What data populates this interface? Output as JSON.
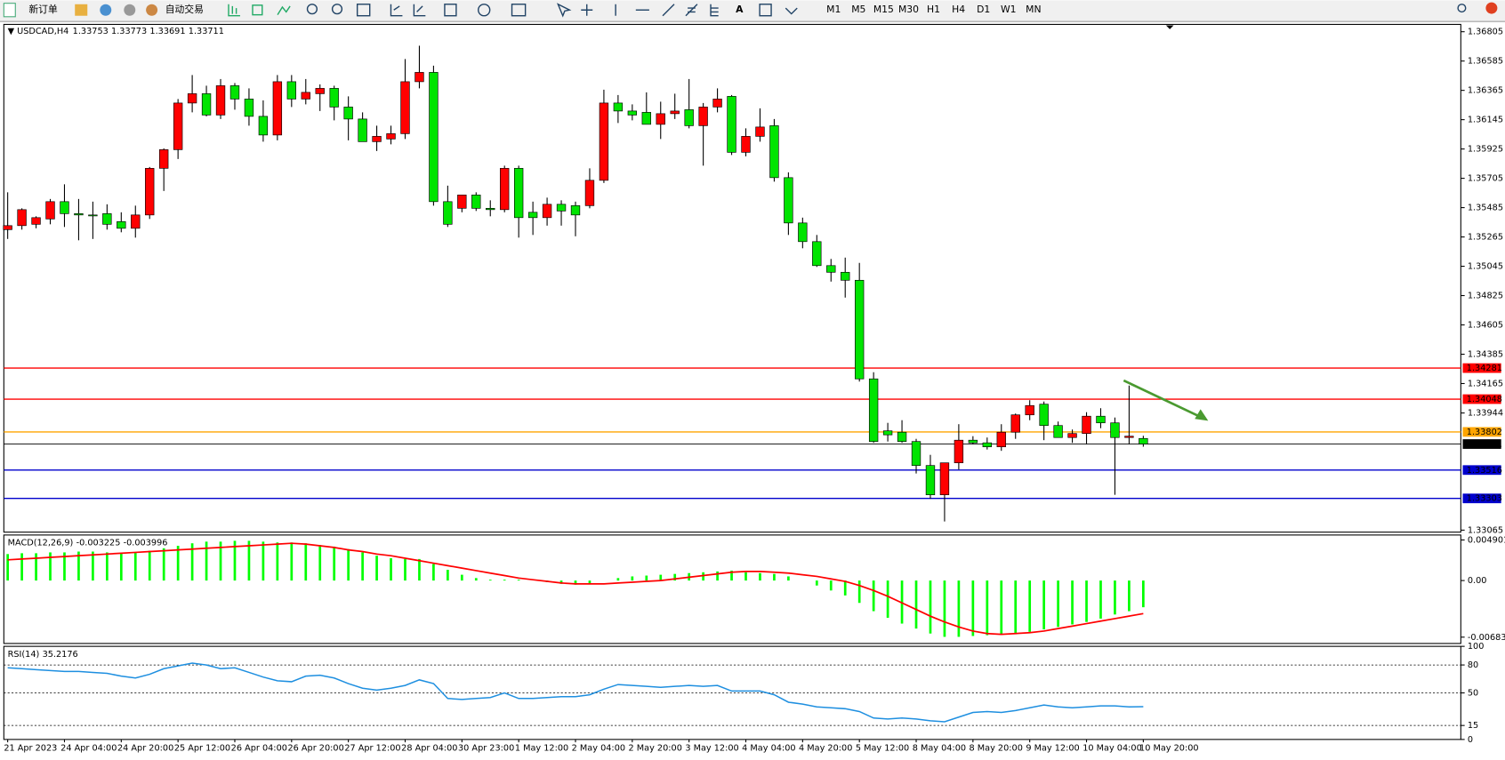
{
  "toolbar": {
    "new_order": "新订单",
    "auto_trading": "自动交易",
    "timeframes": [
      "M1",
      "M5",
      "M15",
      "M30",
      "H1",
      "H4",
      "D1",
      "W1",
      "MN"
    ]
  },
  "chart_data": [
    {
      "type": "candlestick",
      "title": "USDCAD,H4",
      "categories": [
        "21 Apr 2023",
        null,
        null,
        null,
        "24 Apr 04:00",
        null,
        null,
        null,
        "24 Apr 20:00",
        null,
        null,
        null,
        "25 Apr 12:00",
        null,
        null,
        null,
        "26 Apr 04:00",
        null,
        null,
        null,
        "26 Apr 20:00",
        null,
        null,
        null,
        "27 Apr 12:00",
        null,
        null,
        null,
        "28 Apr 04:00",
        null,
        null,
        null,
        "30 Apr 23:00",
        null,
        null,
        null,
        "1 May 12:00",
        null,
        null,
        null,
        "2 May 04:00",
        null,
        null,
        null,
        "2 May 20:00",
        null,
        null,
        null,
        "3 May 12:00",
        null,
        null,
        null,
        "4 May 04:00",
        null,
        null,
        null,
        "4 May 20:00",
        null,
        null,
        null,
        "5 May 12:00",
        null,
        null,
        null,
        "8 May 04:00",
        null,
        null,
        null,
        "8 May 20:00",
        null,
        null,
        null,
        "9 May 12:00",
        null,
        null,
        null,
        "10 May 04:00",
        null,
        null,
        null,
        "10 May 20:00"
      ],
      "open": [
        1.3532,
        1.3535,
        1.3536,
        1.354,
        1.3553,
        1.3544,
        1.3543,
        1.3544,
        1.3538,
        1.3533,
        1.3543,
        1.3578,
        1.3592,
        1.3627,
        1.3634,
        1.3618,
        1.364,
        1.363,
        1.3617,
        1.3603,
        1.3643,
        1.363,
        1.3634,
        1.3638,
        1.3624,
        1.3615,
        1.3598,
        1.36,
        1.3604,
        1.3643,
        1.365,
        1.3553,
        1.3548,
        1.3558,
        1.3548,
        1.3547,
        1.3578,
        1.3545,
        1.3541,
        1.3551,
        1.355,
        1.355,
        1.3569,
        1.3627,
        1.3621,
        1.362,
        1.3611,
        1.3619,
        1.3622,
        1.361,
        1.3624,
        1.3632,
        1.359,
        1.3602,
        1.361,
        1.3571,
        1.3537,
        1.3523,
        1.3505,
        1.35,
        1.3494,
        1.342,
        1.3381,
        1.338,
        1.3373,
        1.3355,
        1.3333,
        1.3357,
        1.3374,
        1.3372,
        1.3369,
        1.338,
        1.3393,
        1.3401,
        1.3385,
        1.3376,
        1.3379,
        1.3392,
        1.3387,
        1.3376,
        1.33753
      ],
      "high": [
        1.356,
        1.3548,
        1.3542,
        1.3555,
        1.3566,
        1.3555,
        1.3553,
        1.3551,
        1.3545,
        1.355,
        1.3579,
        1.3593,
        1.363,
        1.3648,
        1.364,
        1.3645,
        1.3642,
        1.3638,
        1.3629,
        1.3648,
        1.3648,
        1.3645,
        1.3641,
        1.364,
        1.3632,
        1.362,
        1.361,
        1.361,
        1.366,
        1.367,
        1.3655,
        1.3565,
        1.3558,
        1.356,
        1.3554,
        1.358,
        1.358,
        1.3553,
        1.3556,
        1.3554,
        1.3553,
        1.3578,
        1.3637,
        1.3633,
        1.3626,
        1.3635,
        1.3628,
        1.3634,
        1.3645,
        1.3627,
        1.3638,
        1.3633,
        1.3608,
        1.3623,
        1.3615,
        1.3575,
        1.3541,
        1.3528,
        1.351,
        1.3511,
        1.3507,
        1.3425,
        1.3387,
        1.3389,
        1.3375,
        1.3363,
        1.3356,
        1.3386,
        1.3377,
        1.3376,
        1.3386,
        1.3394,
        1.3404,
        1.3403,
        1.3388,
        1.3382,
        1.3395,
        1.3398,
        1.3391,
        1.3415,
        1.33773
      ],
      "low": [
        1.3525,
        1.3532,
        1.3533,
        1.3536,
        1.3534,
        1.3524,
        1.3525,
        1.3532,
        1.353,
        1.3526,
        1.354,
        1.3561,
        1.3585,
        1.362,
        1.3617,
        1.3615,
        1.3622,
        1.361,
        1.3598,
        1.3599,
        1.3624,
        1.3626,
        1.3621,
        1.3614,
        1.3599,
        1.3599,
        1.3591,
        1.3596,
        1.36,
        1.3638,
        1.355,
        1.3534,
        1.3545,
        1.3546,
        1.3542,
        1.3545,
        1.3526,
        1.3528,
        1.3535,
        1.3535,
        1.3527,
        1.3548,
        1.3567,
        1.3612,
        1.3614,
        1.3614,
        1.36,
        1.3615,
        1.3608,
        1.358,
        1.362,
        1.3588,
        1.3587,
        1.3598,
        1.3568,
        1.3528,
        1.3518,
        1.3504,
        1.3493,
        1.3481,
        1.3418,
        1.3372,
        1.3373,
        1.3372,
        1.3349,
        1.333,
        1.3313,
        1.3352,
        1.3371,
        1.3367,
        1.3366,
        1.3375,
        1.3389,
        1.3374,
        1.3377,
        1.3372,
        1.3371,
        1.3383,
        1.3333,
        1.3371,
        1.33691
      ],
      "close": [
        1.3535,
        1.3547,
        1.3541,
        1.3553,
        1.3544,
        1.3543,
        1.3543,
        1.3536,
        1.3533,
        1.3543,
        1.3578,
        1.3592,
        1.3627,
        1.3634,
        1.3618,
        1.364,
        1.363,
        1.3617,
        1.3603,
        1.3643,
        1.363,
        1.3635,
        1.3638,
        1.3624,
        1.3615,
        1.3598,
        1.3602,
        1.3604,
        1.3643,
        1.365,
        1.3553,
        1.3536,
        1.3558,
        1.3548,
        1.3547,
        1.3578,
        1.3541,
        1.3541,
        1.3551,
        1.3546,
        1.3543,
        1.3569,
        1.3627,
        1.3621,
        1.3618,
        1.3611,
        1.3619,
        1.3621,
        1.361,
        1.3624,
        1.363,
        1.359,
        1.3602,
        1.3609,
        1.3571,
        1.3537,
        1.3523,
        1.3505,
        1.35,
        1.3494,
        1.342,
        1.3373,
        1.3378,
        1.3373,
        1.3355,
        1.3333,
        1.3357,
        1.3374,
        1.3372,
        1.3369,
        1.338,
        1.3393,
        1.34,
        1.3385,
        1.3376,
        1.3379,
        1.3392,
        1.3387,
        1.3376,
        1.3377,
        1.33711
      ],
      "up_color": "#ff0000",
      "down_color": "#00e400",
      "ylim": [
        1.3305,
        1.3686
      ],
      "yticks": [
        1.36805,
        1.36585,
        1.36365,
        1.36145,
        1.35925,
        1.35705,
        1.35485,
        1.35265,
        1.35045,
        1.34825,
        1.34605,
        1.34385,
        1.34165,
        1.33944,
        1.33065
      ],
      "hlines": [
        {
          "value": 1.34281,
          "color": "#ff0000"
        },
        {
          "value": 1.34048,
          "color": "#ff0000"
        },
        {
          "value": 1.33802,
          "color": "#ffa500"
        },
        {
          "value": 1.33516,
          "color": "#0000cc"
        },
        {
          "value": 1.33303,
          "color": "#0000cc"
        }
      ]
    },
    {
      "type": "macd",
      "title": "MACD(12,26,9)",
      "histogram": {
        "color": "#00ff00",
        "values": [
          0.0032,
          0.0033,
          0.0033,
          0.0034,
          0.0034,
          0.0035,
          0.0035,
          0.0034,
          0.0033,
          0.0034,
          0.0036,
          0.0039,
          0.0042,
          0.0045,
          0.0047,
          0.0047,
          0.0048,
          0.0048,
          0.0047,
          0.0046,
          0.0046,
          0.0045,
          0.0043,
          0.0041,
          0.0038,
          0.0034,
          0.003,
          0.0027,
          0.0026,
          0.0026,
          0.002,
          0.0013,
          0.0007,
          0.0003,
          0.0001,
          0.0001,
          0.0001,
          0,
          -0.0002,
          -0.0004,
          -0.0005,
          -0.0004,
          0,
          0.0003,
          0.0005,
          0.0006,
          0.0007,
          0.0008,
          0.0009,
          0.001,
          0.0011,
          0.0012,
          0.001,
          0.0009,
          0.0008,
          0.0005,
          0,
          -0.0006,
          -0.0012,
          -0.0018,
          -0.0027,
          -0.0037,
          -0.0045,
          -0.0052,
          -0.0058,
          -0.0064,
          -0.0068,
          -0.0068,
          -0.0067,
          -0.0066,
          -0.0065,
          -0.0064,
          -0.0062,
          -0.0059,
          -0.0056,
          -0.0053,
          -0.005,
          -0.0046,
          -0.0041,
          -0.0037,
          -0.003225
        ]
      },
      "signal": {
        "color": "#ff0000",
        "values": [
          0.0025,
          0.0026,
          0.0027,
          0.0028,
          0.0029,
          0.003,
          0.0031,
          0.0032,
          0.0033,
          0.0034,
          0.0035,
          0.0036,
          0.0037,
          0.0038,
          0.0039,
          0.004,
          0.0041,
          0.0042,
          0.0043,
          0.0044,
          0.0045,
          0.0044,
          0.0042,
          0.004,
          0.0037,
          0.0035,
          0.0032,
          0.003,
          0.0027,
          0.0024,
          0.0021,
          0.0018,
          0.0015,
          0.0012,
          0.0009,
          0.0006,
          0.0003,
          0.0001,
          -0.0001,
          -0.0003,
          -0.0004,
          -0.0004,
          -0.0004,
          -0.0003,
          -0.0002,
          -0.0001,
          0,
          0.0002,
          0.0004,
          0.0006,
          0.0008,
          0.001,
          0.0011,
          0.0011,
          0.001,
          0.0009,
          0.0007,
          0.0005,
          0.0002,
          -0.0001,
          -0.0006,
          -0.0012,
          -0.0019,
          -0.0027,
          -0.0035,
          -0.0043,
          -0.005,
          -0.0056,
          -0.0061,
          -0.0064,
          -0.0065,
          -0.0064,
          -0.0063,
          -0.0061,
          -0.0058,
          -0.0055,
          -0.0052,
          -0.0049,
          -0.0046,
          -0.0043,
          -0.003996
        ]
      },
      "ylim": [
        -0.0076,
        0.0055
      ],
      "yticks": [
        0.004901,
        {
          "value": 0,
          "label": "0.00"
        },
        -0.006838
      ]
    },
    {
      "type": "line",
      "title": "RSI(14)",
      "color": "#1e8fe0",
      "values": [
        77,
        76,
        75,
        74,
        73,
        73,
        72,
        71,
        68,
        66,
        70,
        76,
        79,
        82,
        80,
        76,
        77,
        72,
        67,
        63,
        62,
        68,
        69,
        66,
        60,
        55,
        53,
        55,
        58,
        64,
        60,
        44,
        43,
        44,
        45,
        50,
        44,
        44,
        45,
        46,
        46,
        48,
        54,
        59,
        58,
        57,
        56,
        57,
        58,
        57,
        58,
        52,
        52,
        52,
        48,
        40,
        38,
        35,
        34,
        33,
        30,
        23,
        22,
        23,
        22,
        20,
        19,
        24,
        29,
        30,
        29,
        31,
        34,
        37,
        35,
        34,
        35,
        36,
        36,
        35,
        35.2176
      ],
      "ylim": [
        0,
        100
      ],
      "yticks": [
        100,
        80,
        50,
        15,
        0
      ],
      "levels": [
        80,
        50,
        15
      ]
    }
  ]
}
